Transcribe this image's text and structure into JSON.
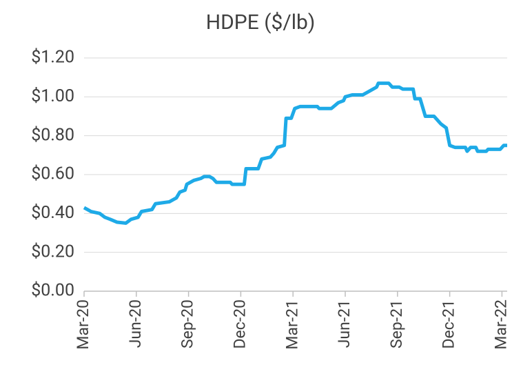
{
  "chart_data": {
    "type": "line",
    "title": "HDPE ($/lb)",
    "x": [
      0,
      0.4,
      0.9,
      1.2,
      1.5,
      1.9,
      2.4,
      2.7,
      3.1,
      3.3,
      3.9,
      4.1,
      4.9,
      5.3,
      5.5,
      5.8,
      5.9,
      6.3,
      6.7,
      6.9,
      7.2,
      7.4,
      7.6,
      8.4,
      8.5,
      9.2,
      9.3,
      10.0,
      10.2,
      10.7,
      10.9,
      11.1,
      11.5,
      11.6,
      11.9,
      12.1,
      12.4,
      13.4,
      13.5,
      14.2,
      14.6,
      14.9,
      15.0,
      15.4,
      16.0,
      16.4,
      16.8,
      16.9,
      17.5,
      17.7,
      18.1,
      18.3,
      18.9,
      19.0,
      19.3,
      19.6,
      20.1,
      20.5,
      20.8,
      21.0,
      21.3,
      21.9,
      22.0,
      22.2,
      22.5,
      22.6,
      23.1,
      23.2,
      23.9,
      24.1,
      24.3
    ],
    "series": [
      {
        "name": "HDPE",
        "color": "#1eaae7",
        "values": [
          0.43,
          0.41,
          0.4,
          0.38,
          0.37,
          0.355,
          0.35,
          0.37,
          0.38,
          0.41,
          0.42,
          0.45,
          0.46,
          0.48,
          0.51,
          0.52,
          0.55,
          0.57,
          0.58,
          0.59,
          0.59,
          0.58,
          0.56,
          0.56,
          0.55,
          0.55,
          0.63,
          0.63,
          0.68,
          0.69,
          0.71,
          0.74,
          0.75,
          0.89,
          0.89,
          0.94,
          0.95,
          0.95,
          0.94,
          0.94,
          0.97,
          0.98,
          1.0,
          1.01,
          1.01,
          1.03,
          1.05,
          1.07,
          1.07,
          1.05,
          1.05,
          1.04,
          1.04,
          0.99,
          0.99,
          0.9,
          0.9,
          0.86,
          0.84,
          0.75,
          0.74,
          0.74,
          0.72,
          0.74,
          0.74,
          0.72,
          0.72,
          0.73,
          0.73,
          0.75,
          0.75
        ]
      }
    ],
    "xlim": [
      0,
      24.3
    ],
    "xticks": [
      {
        "value": 0,
        "label": "Mar-20"
      },
      {
        "value": 3,
        "label": "Jun-20"
      },
      {
        "value": 6,
        "label": "Sep-20"
      },
      {
        "value": 9,
        "label": "Dec-20"
      },
      {
        "value": 12,
        "label": "Mar-21"
      },
      {
        "value": 15,
        "label": "Jun-21"
      },
      {
        "value": 18,
        "label": "Sep-21"
      },
      {
        "value": 21,
        "label": "Dec-21"
      },
      {
        "value": 24,
        "label": "Mar-22"
      }
    ],
    "ylim": [
      0,
      1.2
    ],
    "yticks": [
      {
        "value": 0,
        "label": "$0.00"
      },
      {
        "value": 0.2,
        "label": "$0.20"
      },
      {
        "value": 0.4,
        "label": "$0.40"
      },
      {
        "value": 0.6,
        "label": "$0.60"
      },
      {
        "value": 0.8,
        "label": "$0.80"
      },
      {
        "value": 1.0,
        "label": "$1.00"
      },
      {
        "value": 1.2,
        "label": "$1.20"
      }
    ],
    "grid": true
  }
}
